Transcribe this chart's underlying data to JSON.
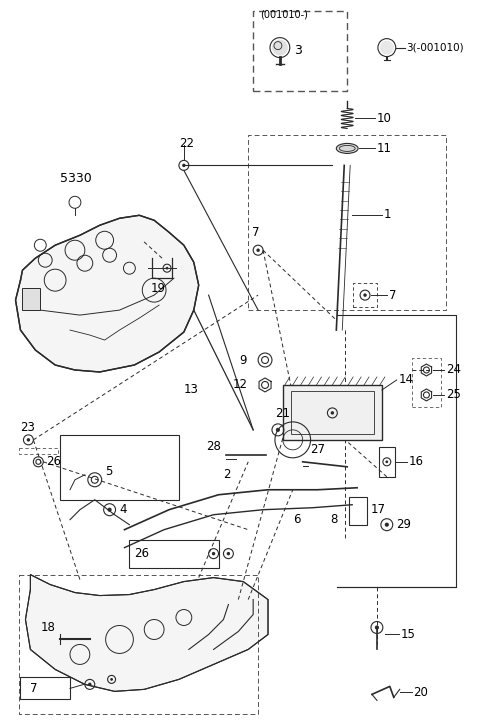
{
  "bg_color": "#ffffff",
  "line_color": "#2a2a2a",
  "fig_width": 4.8,
  "fig_height": 7.27,
  "dpi": 100
}
